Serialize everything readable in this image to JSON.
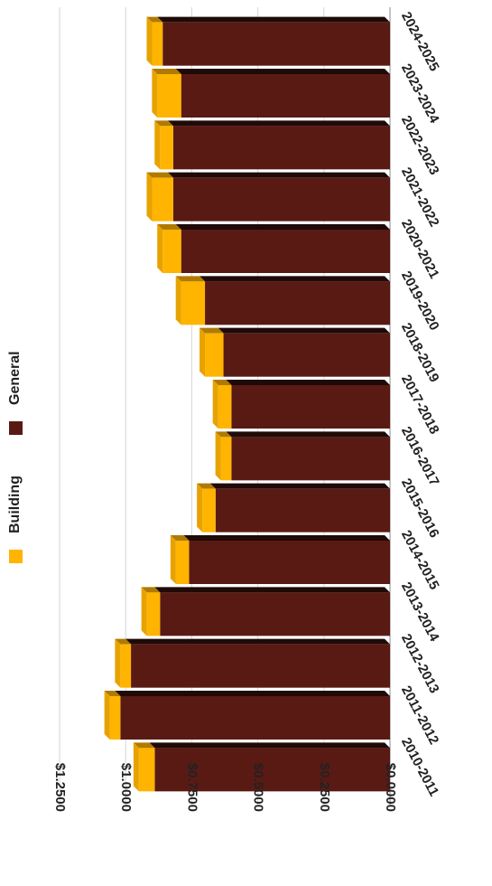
{
  "chart_data": {
    "type": "bar",
    "stacked": true,
    "orientation": "rotated-horizontal-3d",
    "categories": [
      "2010-2011",
      "2011-2012",
      "2012-2013",
      "2013-2014",
      "2014-2015",
      "2015-2016",
      "2016-2017",
      "2017-2018",
      "2018-2019",
      "2019-2020",
      "2020-2021",
      "2021-2022",
      "2022-2023",
      "2023-2024",
      "2024-2025"
    ],
    "series": [
      {
        "name": "General",
        "values": [
          0.89,
          1.02,
          0.98,
          0.87,
          0.76,
          0.66,
          0.6,
          0.6,
          0.63,
          0.7,
          0.79,
          0.82,
          0.82,
          0.79,
          0.86
        ],
        "color": "#5a1a14"
      },
      {
        "name": "Building",
        "values": [
          0.06,
          0.04,
          0.04,
          0.05,
          0.05,
          0.05,
          0.04,
          0.05,
          0.07,
          0.09,
          0.07,
          0.08,
          0.05,
          0.09,
          0.04
        ],
        "color": "#ffb400"
      }
    ],
    "y_ticks": [
      "$0.0000",
      "$0.2500",
      "$0.5000",
      "$0.7500",
      "$1.0000",
      "$1.2500"
    ],
    "ylim": [
      0,
      1.25
    ],
    "grid": true,
    "legend_position": "right"
  }
}
